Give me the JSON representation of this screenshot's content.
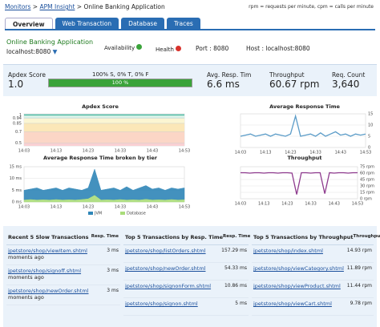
{
  "header": {
    "breadcrumb": [
      "Monitors",
      "APM Insight",
      "Online Banking Application"
    ],
    "legend_note": "rpm = requests per minute, cpm = calls per minute"
  },
  "tabs": [
    "Overview",
    "Web Transaction",
    "Database",
    "Traces"
  ],
  "info": {
    "app": "Online Banking Application",
    "host_short": "localhost:8080",
    "availability": "Availability",
    "health": "Health",
    "port": "Port : 8080",
    "host": "Host : localhost:8080"
  },
  "metrics": {
    "apdex_label": "Apdex Score",
    "apdex_value": "1.0",
    "breakdown": "100% S, 0% T, 0% F",
    "bar": {
      "value": 100,
      "label": "100 %"
    },
    "items": [
      {
        "label": "Avg. Resp. Tim",
        "value": "6.6 ms"
      },
      {
        "label": "Throughput",
        "value": "60.67 rpm"
      },
      {
        "label": "Req. Count",
        "value": "3,640"
      }
    ]
  },
  "chart_data": [
    {
      "type": "line",
      "title": "Apdex Score",
      "categories": [
        "14:03",
        null,
        null,
        null,
        null,
        "14:13",
        null,
        null,
        null,
        null,
        "14:23",
        null,
        null,
        null,
        null,
        "14:33",
        null,
        null,
        null,
        null,
        "14:43",
        null,
        null,
        null,
        null,
        "14:53"
      ],
      "series": [
        {
          "color": "#3bb39b",
          "values": [
            1,
            1,
            1,
            1,
            1,
            1,
            1,
            1,
            1,
            1,
            1,
            1,
            1,
            1,
            1,
            1,
            1,
            1,
            1,
            1,
            1,
            1,
            1,
            1,
            1,
            1
          ]
        }
      ],
      "ylim": [
        0.45,
        1.02
      ],
      "yticks": [
        1,
        0.94,
        0.85,
        0.7,
        0.5
      ],
      "band_colors": [
        "#d6f0e6",
        "#fbf5d2",
        "#fbe7b8",
        "#fbd6c6",
        "#f9d0d3"
      ]
    },
    {
      "type": "line",
      "title": "Average Response Time",
      "categories": [
        "14:03",
        null,
        null,
        null,
        null,
        "14:13",
        null,
        null,
        null,
        null,
        "14:23",
        null,
        null,
        null,
        null,
        "14:33",
        null,
        null,
        null,
        null,
        "14:43",
        null,
        null,
        null,
        null,
        "14:53"
      ],
      "series": [
        {
          "color": "#5b9cc8",
          "values": [
            5,
            5.5,
            6,
            5,
            5.5,
            6,
            5,
            6,
            5.5,
            5,
            6,
            14,
            5,
            5.5,
            6,
            5,
            6.5,
            5,
            6,
            7,
            5.5,
            6,
            5,
            6,
            5.5,
            6
          ]
        }
      ],
      "ylim": [
        0,
        15
      ],
      "yticks": [
        15,
        10,
        5,
        0
      ],
      "grid": true
    },
    {
      "type": "area",
      "stacked": true,
      "title": "Average Response Time broken by tier",
      "categories": [
        "14:03",
        null,
        null,
        null,
        null,
        "14:13",
        null,
        null,
        null,
        null,
        "14:23",
        null,
        null,
        null,
        null,
        "14:33",
        null,
        null,
        null,
        null,
        "14:43",
        null,
        null,
        null,
        null,
        "14:53"
      ],
      "series": [
        {
          "name": "Database",
          "color": "#a9dc7a",
          "values": [
            1,
            1.2,
            1,
            1.1,
            1,
            1.2,
            1,
            1.1,
            1,
            1.2,
            1.5,
            3,
            1,
            1.1,
            1,
            1.2,
            1,
            1.1,
            1,
            1.3,
            1,
            1.1,
            1,
            1.2,
            1,
            1.1
          ]
        },
        {
          "name": "JVM",
          "color": "#2f86b8",
          "values": [
            4,
            4.3,
            5,
            3.9,
            4.5,
            4.8,
            4,
            4.9,
            4.5,
            3.8,
            4.5,
            11,
            4,
            4.4,
            5,
            3.8,
            5.5,
            3.9,
            5,
            5.7,
            4.5,
            4.9,
            4,
            4.8,
            4.5,
            4.9
          ]
        }
      ],
      "ylim": [
        0,
        15
      ],
      "yticks": [
        {
          "value": 15,
          "label": "15 ms"
        },
        {
          "value": 10,
          "label": "10 ms"
        },
        {
          "value": 5,
          "label": "5 ms"
        },
        {
          "value": 0,
          "label": "0 ms"
        }
      ],
      "grid": true
    },
    {
      "type": "line",
      "title": "Throughput",
      "categories": [
        "14:03",
        null,
        null,
        null,
        null,
        "14:13",
        null,
        null,
        null,
        null,
        "14:23",
        null,
        null,
        null,
        null,
        "14:33",
        null,
        null,
        null,
        null,
        "14:43",
        null,
        null,
        null,
        null,
        "14:53"
      ],
      "series": [
        {
          "color": "#8e3b8e",
          "values": [
            61,
            61,
            60,
            61,
            61,
            60,
            61,
            61,
            60,
            61,
            61,
            60,
            10,
            61,
            61,
            60,
            61,
            61,
            12,
            61,
            60,
            61,
            61,
            60,
            61,
            61
          ]
        }
      ],
      "ylim": [
        0,
        75
      ],
      "yticks": [
        {
          "value": 75,
          "label": "75 rpm"
        },
        {
          "value": 60,
          "label": "60 rpm"
        },
        {
          "value": 45,
          "label": "45 rpm"
        },
        {
          "value": 30,
          "label": "30 rpm"
        },
        {
          "value": 15,
          "label": "15 rpm"
        },
        {
          "value": 0,
          "label": "0 rpm"
        }
      ],
      "grid": true
    }
  ],
  "tables": [
    {
      "title": "Recent 5 Slow Transactions",
      "column": "Resp. Time",
      "rows": [
        {
          "name": "jpetstore/shop/viewItem.shtml",
          "time": "moments ago",
          "value": "3 ms"
        },
        {
          "name": "jpetstore/shop/signoff.shtml",
          "time": "moments ago",
          "value": "3 ms"
        },
        {
          "name": "jpetstore/shop/newOrder.shtml",
          "time": "moments ago",
          "value": "3 ms"
        }
      ]
    },
    {
      "title": "Top 5 Transactions by Resp. Time",
      "column": "Resp. Time",
      "rows": [
        {
          "name": "jpetstore/shop/listOrders.shtml",
          "value": "157.29 ms"
        },
        {
          "name": "jpetstore/shop/newOrder.shtml",
          "value": "54.33 ms"
        },
        {
          "name": "jpetstore/shop/signonForm.shtml",
          "value": "10.86 ms"
        },
        {
          "name": "jpetstore/shop/signon.shtml",
          "value": "5 ms"
        }
      ]
    },
    {
      "title": "Top 5 Transactions by Throughput",
      "column": "Throughput",
      "rows": [
        {
          "name": "jpetstore/shop/index.shtml",
          "value": "14.93 rpm"
        },
        {
          "name": "jpetstore/shop/viewCategory.shtml",
          "value": "11.89 rpm"
        },
        {
          "name": "jpetstore/shop/viewProduct.shtml",
          "value": "11.44 rpm"
        },
        {
          "name": "jpetstore/shop/viewCart.shtml",
          "value": "9.78 rpm"
        }
      ]
    }
  ]
}
